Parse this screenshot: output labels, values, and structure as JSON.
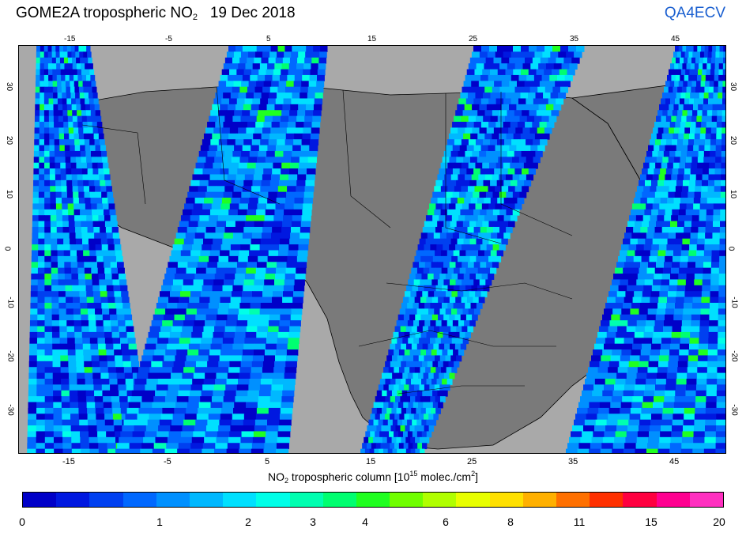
{
  "header": {
    "title_main": "GOME2A tropospheric NO",
    "title_sub": "2",
    "title_date": "19 Dec 2018",
    "brand": "QA4ECV"
  },
  "map": {
    "lon_ticks": [
      "-15",
      "-5",
      "5",
      "15",
      "25",
      "35",
      "45"
    ],
    "lat_ticks": [
      "30",
      "20",
      "10",
      "0",
      "-10",
      "-20",
      "-30"
    ],
    "lon_range": [
      -20,
      50
    ],
    "lat_range": [
      -38,
      38
    ],
    "ocean_color": "#a9a9a9",
    "land_color": "#7a7a7a",
    "no_data_color": "#7a7a7a"
  },
  "axis": {
    "xlabel_pre": "NO",
    "xlabel_sub": "2",
    "xlabel_mid": " tropospheric column [10",
    "xlabel_sup1": "15",
    "xlabel_mid2": " molec./cm",
    "xlabel_sup2": "2",
    "xlabel_end": "]"
  },
  "colorbar": {
    "labels": [
      "0",
      "1",
      "2",
      "3",
      "4",
      "6",
      "8",
      "11",
      "15",
      "20"
    ],
    "colors": [
      "#0000c8",
      "#0018e0",
      "#0040f0",
      "#0068ff",
      "#0090ff",
      "#00b8ff",
      "#00e0ff",
      "#00ffe8",
      "#00ffb0",
      "#00ff70",
      "#20ff20",
      "#70ff00",
      "#b0ff00",
      "#e8ff00",
      "#ffe000",
      "#ffb000",
      "#ff7000",
      "#ff3000",
      "#ff0040",
      "#ff0090",
      "#ff30c0"
    ]
  }
}
